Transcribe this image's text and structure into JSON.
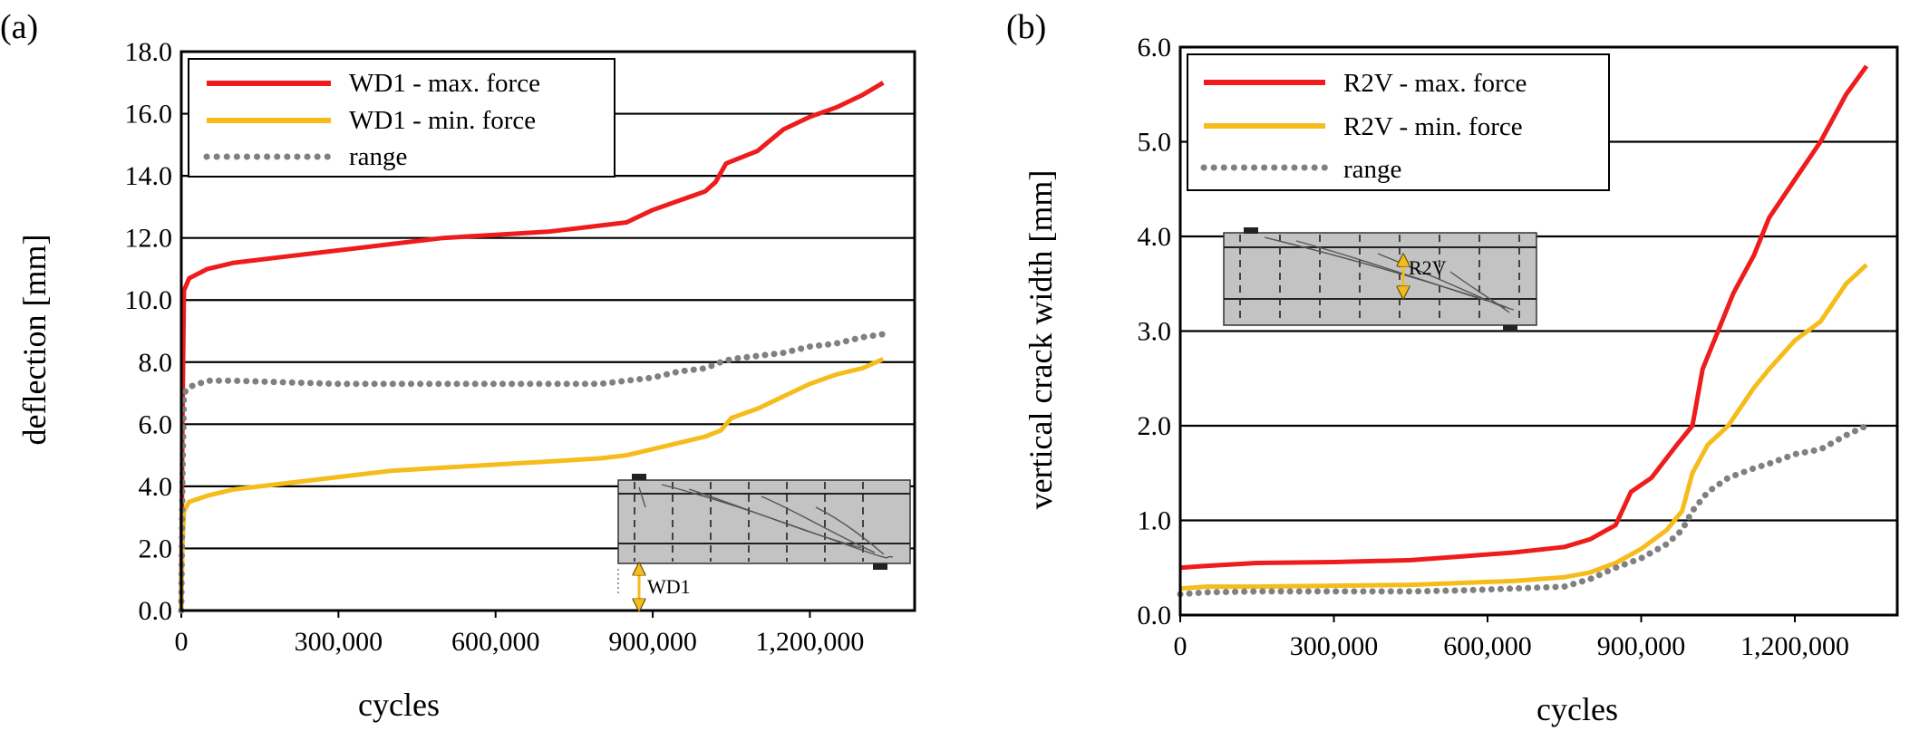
{
  "chart_data": [
    {
      "panel_label": "(a)",
      "type": "line",
      "xlabel": "cycles",
      "ylabel": "deflection [mm]",
      "xlim": [
        0,
        1400000
      ],
      "ylim": [
        0,
        18
      ],
      "xticks": [
        "0",
        "300,000",
        "600,000",
        "900,000",
        "1,200,000"
      ],
      "yticks": [
        "0.0",
        "2.0",
        "4.0",
        "6.0",
        "8.0",
        "10.0",
        "12.0",
        "14.0",
        "16.0",
        "18.0"
      ],
      "grid": "horizontal",
      "legend_position": "top-left",
      "inset_label": "WD1",
      "series": [
        {
          "name": "WD1 - max. force",
          "color": "#ee1c1c",
          "style": "solid",
          "x": [
            0,
            2000,
            5000,
            15000,
            50000,
            100000,
            200000,
            300000,
            400000,
            500000,
            600000,
            700000,
            800000,
            850000,
            900000,
            950000,
            1000000,
            1020000,
            1040000,
            1100000,
            1150000,
            1200000,
            1250000,
            1300000,
            1340000
          ],
          "y": [
            0,
            6.0,
            10.3,
            10.7,
            11.0,
            11.2,
            11.4,
            11.6,
            11.8,
            12.0,
            12.1,
            12.2,
            12.4,
            12.5,
            12.9,
            13.2,
            13.5,
            13.8,
            14.4,
            14.8,
            15.5,
            15.9,
            16.2,
            16.6,
            17.0
          ]
        },
        {
          "name": "WD1 - min. force",
          "color": "#f5bc1c",
          "style": "solid",
          "x": [
            0,
            2000,
            5000,
            15000,
            50000,
            100000,
            200000,
            300000,
            400000,
            500000,
            600000,
            700000,
            800000,
            850000,
            900000,
            950000,
            1000000,
            1030000,
            1050000,
            1100000,
            1150000,
            1200000,
            1250000,
            1300000,
            1340000
          ],
          "y": [
            0,
            2.0,
            3.2,
            3.5,
            3.7,
            3.9,
            4.1,
            4.3,
            4.5,
            4.6,
            4.7,
            4.8,
            4.9,
            5.0,
            5.2,
            5.4,
            5.6,
            5.8,
            6.2,
            6.5,
            6.9,
            7.3,
            7.6,
            7.8,
            8.1
          ]
        },
        {
          "name": "range",
          "color": "#808080",
          "style": "dotted",
          "x": [
            0,
            2000,
            5000,
            15000,
            50000,
            100000,
            200000,
            300000,
            400000,
            500000,
            600000,
            700000,
            800000,
            850000,
            900000,
            950000,
            1000000,
            1030000,
            1050000,
            1100000,
            1150000,
            1200000,
            1250000,
            1300000,
            1340000
          ],
          "y": [
            0,
            4.0,
            7.0,
            7.2,
            7.4,
            7.4,
            7.35,
            7.3,
            7.3,
            7.3,
            7.3,
            7.3,
            7.3,
            7.4,
            7.5,
            7.7,
            7.8,
            8.0,
            8.1,
            8.2,
            8.3,
            8.5,
            8.6,
            8.8,
            8.9
          ]
        }
      ]
    },
    {
      "panel_label": "(b)",
      "type": "line",
      "xlabel": "cycles",
      "ylabel": "vertical crack width [mm]",
      "xlim": [
        0,
        1400000
      ],
      "ylim": [
        0,
        6
      ],
      "xticks": [
        "0",
        "300,000",
        "600,000",
        "900,000",
        "1,200,000"
      ],
      "yticks": [
        "0.0",
        "1.0",
        "2.0",
        "3.0",
        "4.0",
        "5.0",
        "6.0"
      ],
      "grid": "horizontal",
      "legend_position": "top-left",
      "inset_label": "R2V",
      "series": [
        {
          "name": "R2V - max. force",
          "color": "#ee1c1c",
          "style": "solid",
          "x": [
            0,
            50000,
            150000,
            300000,
            450000,
            550000,
            650000,
            750000,
            800000,
            850000,
            880000,
            920000,
            970000,
            1000000,
            1020000,
            1050000,
            1080000,
            1120000,
            1150000,
            1200000,
            1250000,
            1300000,
            1340000
          ],
          "y": [
            0.5,
            0.52,
            0.55,
            0.56,
            0.58,
            0.62,
            0.66,
            0.72,
            0.8,
            0.95,
            1.3,
            1.45,
            1.8,
            2.0,
            2.6,
            3.0,
            3.4,
            3.8,
            4.2,
            4.6,
            5.0,
            5.5,
            5.8
          ]
        },
        {
          "name": "R2V - min. force",
          "color": "#f5bc1c",
          "style": "solid",
          "x": [
            0,
            50000,
            150000,
            300000,
            450000,
            550000,
            650000,
            750000,
            800000,
            850000,
            900000,
            950000,
            980000,
            1000000,
            1030000,
            1070000,
            1120000,
            1150000,
            1200000,
            1250000,
            1300000,
            1340000
          ],
          "y": [
            0.28,
            0.3,
            0.3,
            0.31,
            0.32,
            0.34,
            0.36,
            0.4,
            0.45,
            0.55,
            0.7,
            0.9,
            1.1,
            1.5,
            1.8,
            2.0,
            2.4,
            2.6,
            2.9,
            3.1,
            3.5,
            3.7
          ]
        },
        {
          "name": "range",
          "color": "#808080",
          "style": "dotted",
          "x": [
            0,
            50000,
            150000,
            300000,
            450000,
            550000,
            650000,
            750000,
            800000,
            850000,
            900000,
            950000,
            980000,
            1000000,
            1030000,
            1070000,
            1120000,
            1150000,
            1200000,
            1250000,
            1300000,
            1340000
          ],
          "y": [
            0.22,
            0.24,
            0.25,
            0.25,
            0.25,
            0.26,
            0.28,
            0.3,
            0.38,
            0.5,
            0.6,
            0.75,
            0.9,
            1.1,
            1.3,
            1.45,
            1.55,
            1.6,
            1.7,
            1.75,
            1.9,
            2.0
          ]
        }
      ]
    }
  ]
}
